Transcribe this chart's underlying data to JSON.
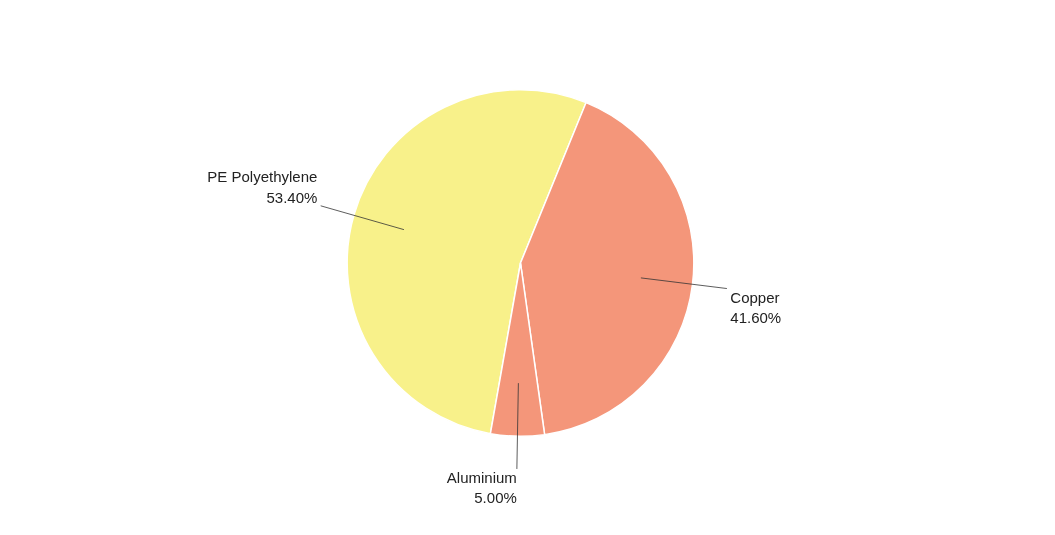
{
  "chart_data": {
    "type": "pie",
    "categories": [
      "PE Polyethylene",
      "Copper",
      "Aluminium"
    ],
    "values": [
      53.4,
      41.6,
      5.0
    ],
    "colors": [
      "#f8f18a",
      "#f4967a",
      "#f4967a"
    ],
    "value_labels": [
      "53.40%",
      "41.60%",
      "5.00%"
    ]
  }
}
